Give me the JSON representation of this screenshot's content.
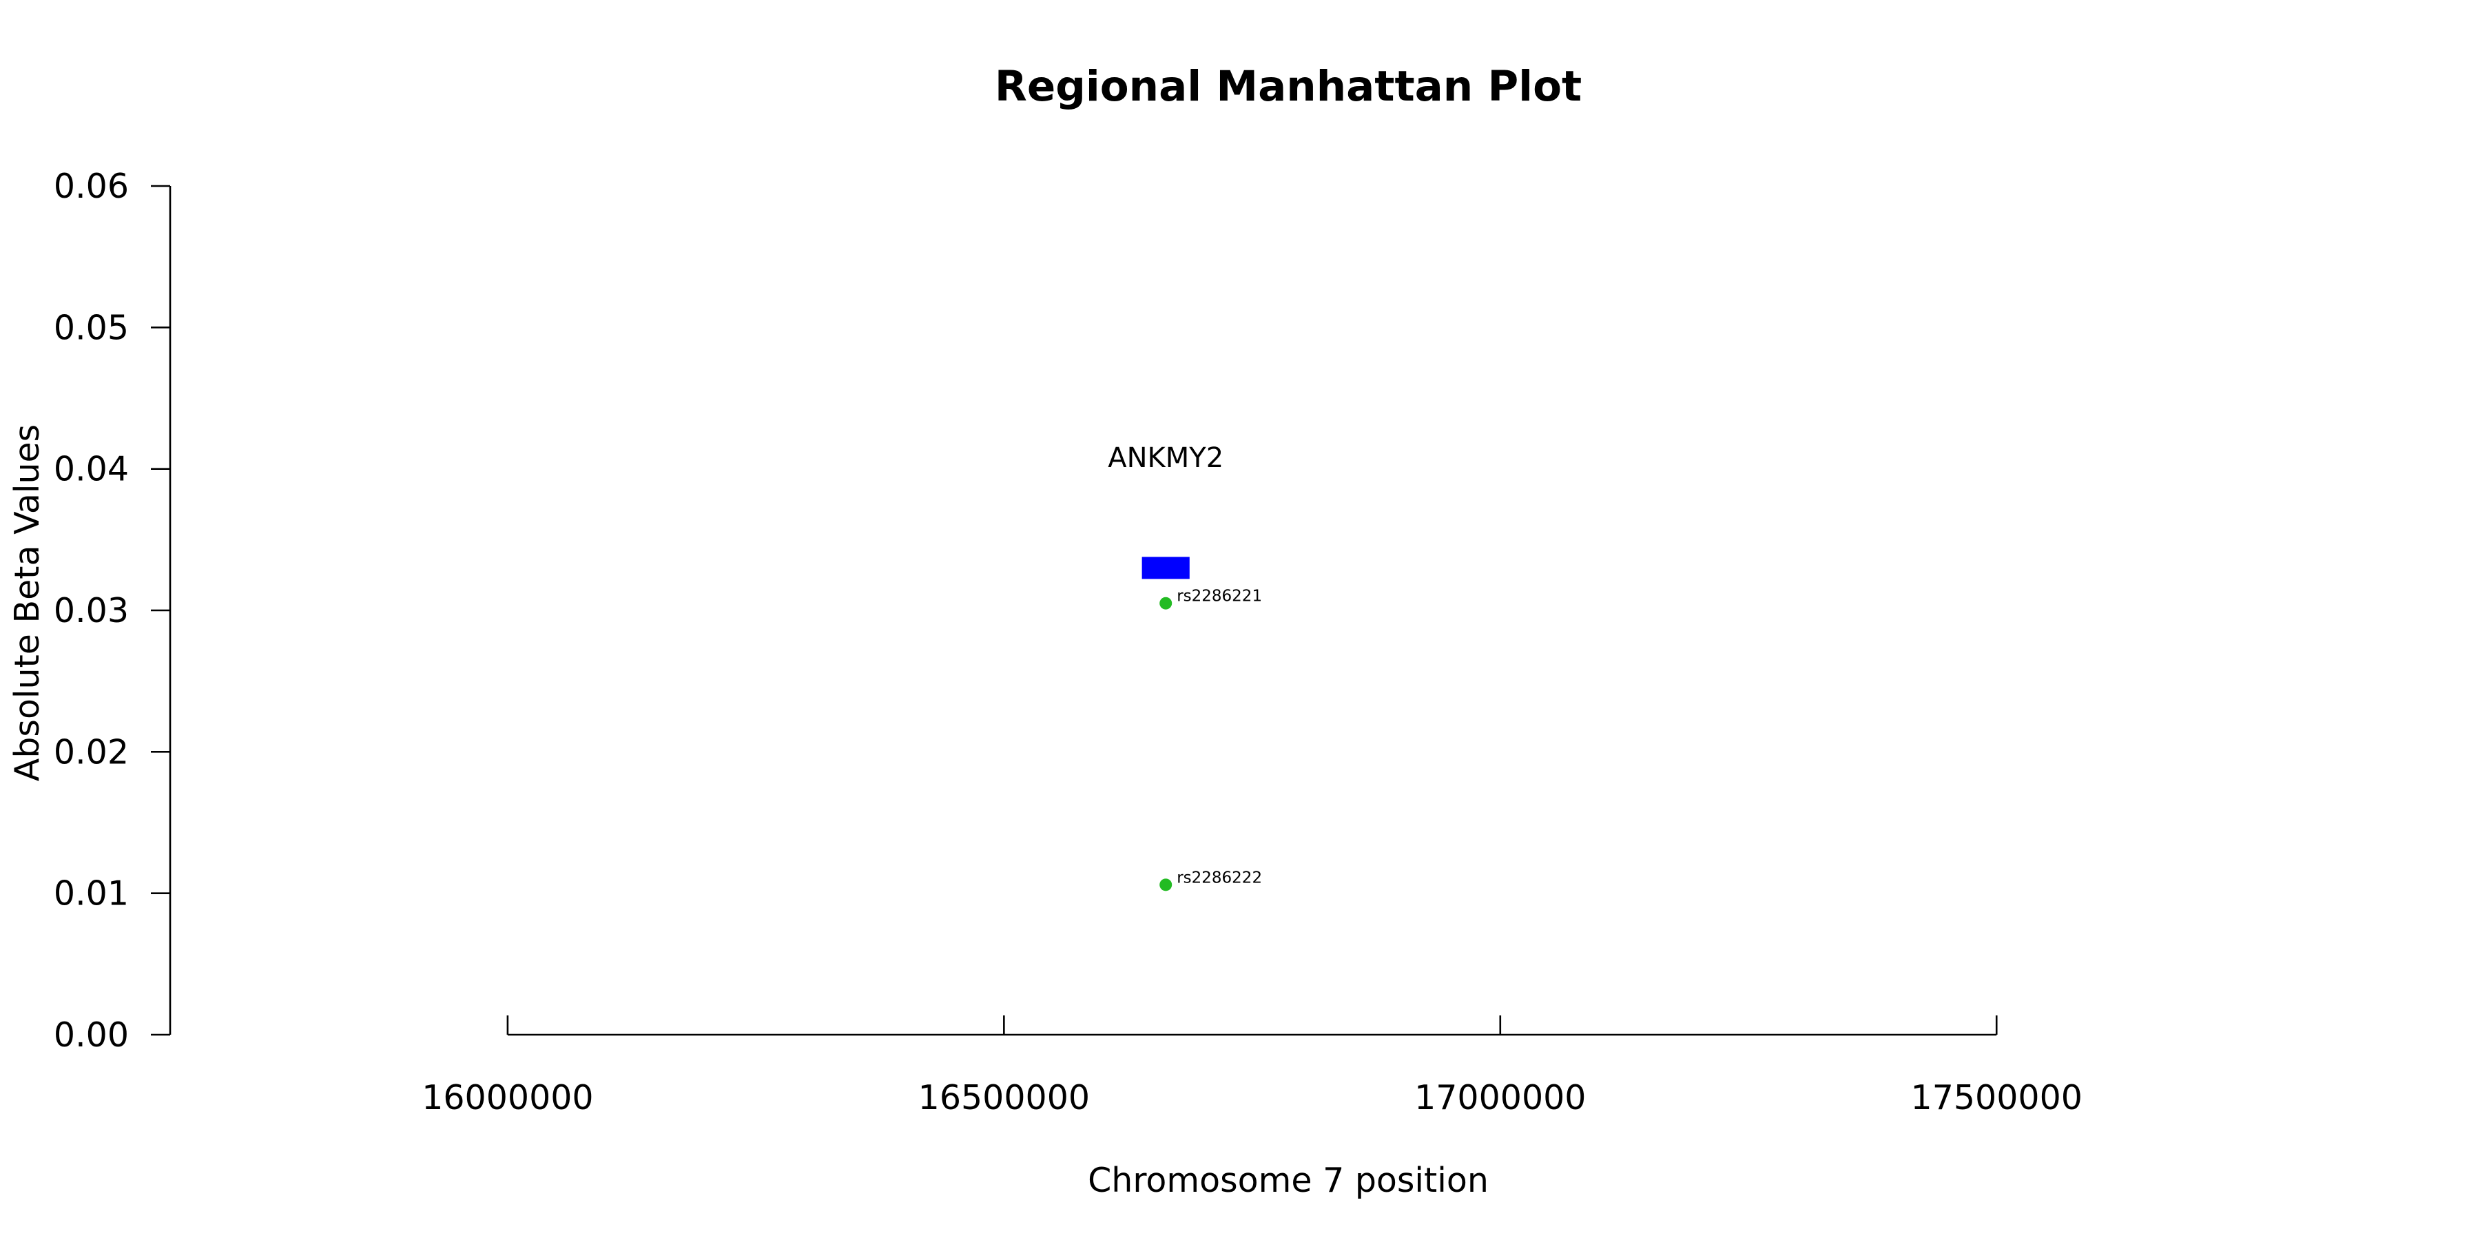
{
  "chart_data": {
    "type": "scatter",
    "title": "Regional Manhattan Plot",
    "xlabel": "Chromosome 7 position",
    "ylabel": "Absolute Beta Values",
    "xlim": [
      15660000,
      17910000
    ],
    "ylim": [
      0,
      0.06
    ],
    "x_ticks": [
      16000000,
      16500000,
      17000000,
      17500000
    ],
    "x_tick_labels": [
      "16000000",
      "16500000",
      "17000000",
      "17500000"
    ],
    "y_ticks": [
      0,
      0.01,
      0.02,
      0.03,
      0.04,
      0.05,
      0.06
    ],
    "y_tick_labels": [
      "0.00",
      "0.01",
      "0.02",
      "0.03",
      "0.04",
      "0.05",
      "0.06"
    ],
    "series": [
      {
        "color": "#22bb22",
        "points": [
          {
            "x": 16663000,
            "y": 0.0305,
            "label": "rs2286221"
          },
          {
            "x": 16663000,
            "y": 0.0106,
            "label": "rs2286222"
          }
        ]
      }
    ],
    "genes": [
      {
        "name": "ANKMY2",
        "start": 16639000,
        "end": 16687000,
        "y": 0.033,
        "label_y": 0.0408,
        "color": "#0000ff"
      }
    ],
    "grid": false,
    "legend": "none"
  }
}
